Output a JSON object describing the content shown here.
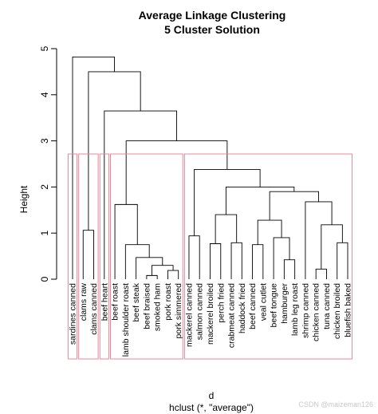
{
  "chart_data": {
    "type": "dendrogram",
    "title": [
      "Average Linkage Clustering",
      "5 Cluster Solution"
    ],
    "xlabel": "d",
    "sublabel": "hclust (*, \"average\")",
    "ylabel": "Height",
    "yticks": [
      0,
      1,
      2,
      3,
      4,
      5
    ],
    "ylim": [
      0,
      5
    ],
    "leaves": [
      "sardines canned",
      "clams raw",
      "clams canned",
      "beef heart",
      "beef roast",
      "lamb shoulder roast",
      "beef steak",
      "beef braised",
      "smoked ham",
      "pork roast",
      "pork simmered",
      "mackerel canned",
      "salmon canned",
      "mackerel broiled",
      "perch fried",
      "crabmeat canned",
      "haddock fried",
      "beef canned",
      "veal cutlet",
      "beef tongue",
      "hamburger",
      "lamb leg roast",
      "shrimp canned",
      "chicken canned",
      "tuna canned",
      "chicken broiled",
      "bluefish baked"
    ],
    "merges": [
      {
        "a": "L7",
        "b": "L8",
        "h": 0.08
      },
      {
        "a": "L9",
        "b": "L10",
        "h": 0.19
      },
      {
        "a": "L23",
        "b": "L24",
        "h": 0.22
      },
      {
        "a": "N0",
        "b": "N1",
        "h": 0.3
      },
      {
        "a": "L20",
        "b": "L21",
        "h": 0.42
      },
      {
        "a": "L6",
        "b": "N3",
        "h": 0.47
      },
      {
        "a": "L5",
        "b": "N5",
        "h": 0.75
      },
      {
        "a": "L13",
        "b": "L14",
        "h": 0.77
      },
      {
        "a": "L15",
        "b": "L16",
        "h": 0.79
      },
      {
        "a": "L17",
        "b": "L18",
        "h": 0.75
      },
      {
        "a": "L25",
        "b": "L26",
        "h": 0.79
      },
      {
        "a": "L19",
        "b": "N4",
        "h": 0.9
      },
      {
        "a": "L11",
        "b": "L12",
        "h": 0.94
      },
      {
        "a": "L1",
        "b": "L2",
        "h": 1.06
      },
      {
        "a": "N2",
        "b": "N10",
        "h": 1.18
      },
      {
        "a": "N9",
        "b": "N11",
        "h": 1.28
      },
      {
        "a": "N7",
        "b": "N8",
        "h": 1.4
      },
      {
        "a": "L4",
        "b": "N6",
        "h": 1.62
      },
      {
        "a": "L22",
        "b": "N14",
        "h": 1.68
      },
      {
        "a": "N15",
        "b": "N18",
        "h": 1.9
      },
      {
        "a": "N16",
        "b": "N19",
        "h": 2.0
      },
      {
        "a": "N12",
        "b": "N20",
        "h": 2.38
      },
      {
        "a": "N17",
        "b": "N21",
        "h": 3.0
      },
      {
        "a": "L3",
        "b": "N22",
        "h": 3.65
      },
      {
        "a": "N13",
        "b": "N23",
        "h": 4.5
      },
      {
        "a": "L0",
        "b": "N24",
        "h": 4.82
      }
    ],
    "clusters": [
      {
        "from": 0,
        "to": 0
      },
      {
        "from": 1,
        "to": 2
      },
      {
        "from": 3,
        "to": 3
      },
      {
        "from": 4,
        "to": 10
      },
      {
        "from": 11,
        "to": 26
      }
    ],
    "cluster_color": "#e8879a",
    "line_color": "#000000"
  },
  "watermark": "CSDN @maizeman126"
}
